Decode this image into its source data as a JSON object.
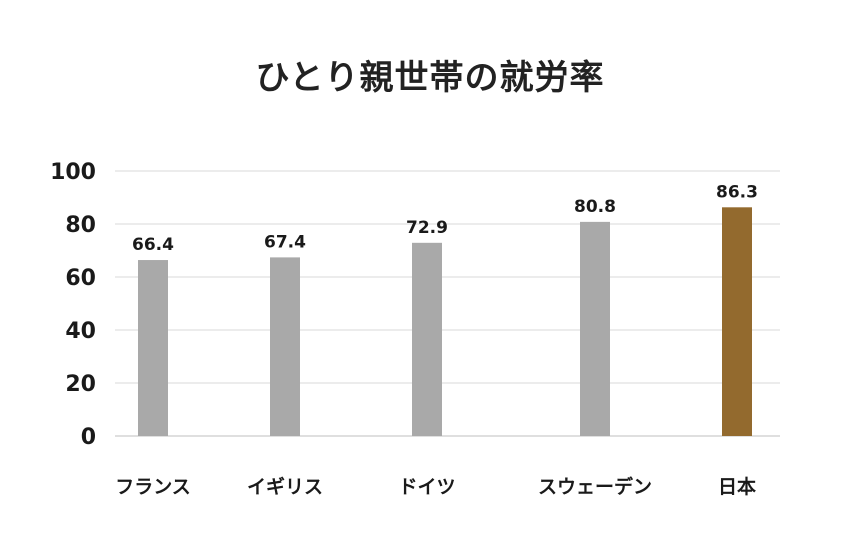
{
  "chart_data": {
    "type": "bar",
    "title": "ひとり親世帯の就労率",
    "categories": [
      "フランス",
      "イギリス",
      "ドイツ",
      "スウェーデン",
      "日本"
    ],
    "values": [
      66.4,
      67.4,
      72.9,
      80.8,
      86.3
    ],
    "data_labels": [
      "66.4",
      "67.4",
      "72.9",
      "80.8",
      "86.3"
    ],
    "ylim": [
      0,
      100
    ],
    "yticks": [
      0,
      20,
      40,
      60,
      80,
      100
    ],
    "xlabel": "",
    "ylabel": "",
    "grid": true,
    "colors": {
      "default_bar": "#a9a9a9",
      "highlight_bar": "#936a2e",
      "gridline": "#d9d9d9",
      "axis": "#bfbfbf",
      "text": "#1a1a1a"
    },
    "highlight_category": "日本"
  }
}
